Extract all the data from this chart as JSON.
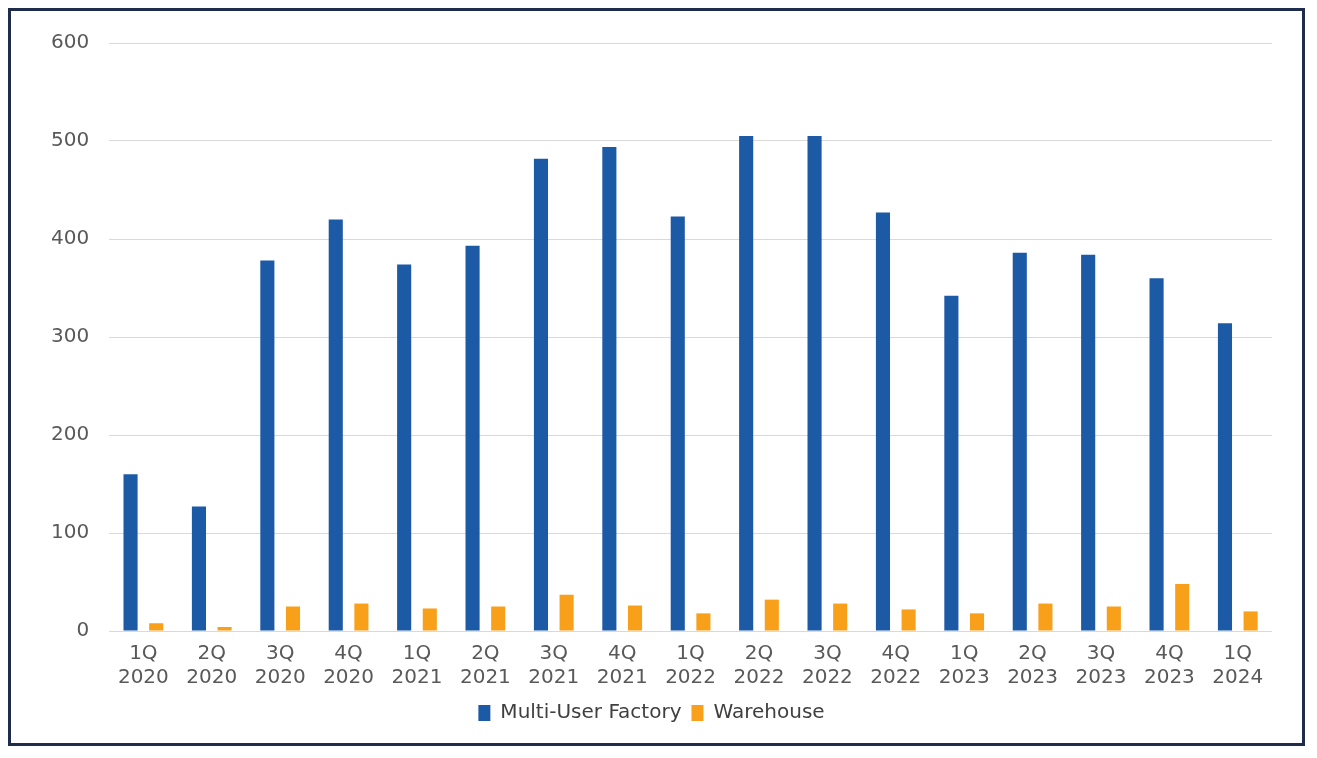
{
  "chart_data": {
    "type": "bar",
    "categories": [
      "1Q 2020",
      "2Q 2020",
      "3Q 2020",
      "4Q 2020",
      "1Q 2021",
      "2Q 2021",
      "3Q 2021",
      "4Q 2021",
      "1Q 2022",
      "2Q 2022",
      "3Q 2022",
      "4Q 2022",
      "1Q 2023",
      "2Q 2023",
      "3Q 2023",
      "4Q 2023",
      "1Q 2024"
    ],
    "series": [
      {
        "name": "Multi-User Factory",
        "color": "#1c5aa6",
        "values": [
          160,
          127,
          378,
          420,
          374,
          393,
          482,
          494,
          423,
          505,
          505,
          427,
          342,
          386,
          384,
          360,
          314
        ]
      },
      {
        "name": "Warehouse",
        "color": "#f9a01b",
        "values": [
          8,
          4,
          25,
          28,
          23,
          25,
          37,
          26,
          18,
          32,
          28,
          22,
          18,
          28,
          25,
          48,
          20
        ]
      }
    ],
    "ylim": [
      0,
      600
    ],
    "yticks": [
      0,
      100,
      200,
      300,
      400,
      500,
      600
    ],
    "grid": "y",
    "legend": "bottom"
  }
}
